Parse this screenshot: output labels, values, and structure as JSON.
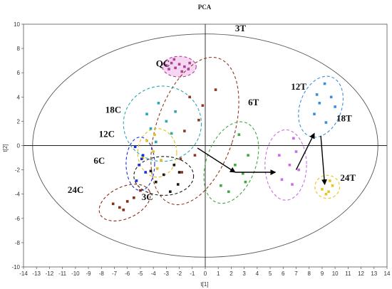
{
  "chart_data": {
    "type": "scatter",
    "title": "PCA",
    "xlabel": "t[1]",
    "ylabel": "t[2]",
    "xlim": [
      -14,
      14
    ],
    "ylim": [
      -10,
      10
    ],
    "xticks": [
      -14,
      -13,
      -12,
      -11,
      -10,
      -9,
      -8,
      -7,
      -6,
      -5,
      -4,
      -3,
      -2,
      -1,
      0,
      1,
      2,
      3,
      4,
      5,
      6,
      7,
      8,
      9,
      10,
      11,
      12,
      13,
      14
    ],
    "yticks": [
      -10,
      -8,
      -6,
      -4,
      -2,
      0,
      2,
      4,
      6,
      8,
      10
    ],
    "grid": false,
    "legend": "none",
    "reference_ellipse": {
      "center": [
        0,
        0
      ],
      "radii": [
        13.3,
        9.2
      ]
    },
    "series": [
      {
        "name": "QC",
        "color": "#b0409a",
        "label_pos": [
          -3.8,
          6.5
        ],
        "ellipse": {
          "cx": -2.0,
          "cy": 6.5,
          "rx": 1.3,
          "ry": 0.85,
          "angle": 0
        },
        "points": [
          [
            -3.0,
            6.6
          ],
          [
            -2.6,
            6.8
          ],
          [
            -2.3,
            6.4
          ],
          [
            -2.0,
            6.7
          ],
          [
            -1.6,
            6.5
          ],
          [
            -1.3,
            6.3
          ],
          [
            -2.4,
            7.1
          ],
          [
            -1.2,
            6.8
          ],
          [
            -2.8,
            6.3
          ],
          [
            -1.8,
            6.1
          ]
        ]
      },
      {
        "name": "3T",
        "color": "#8b3a1e",
        "label_pos": [
          2.3,
          9.4
        ],
        "ellipse": {
          "cx": -0.8,
          "cy": 1.2,
          "rx": 3.0,
          "ry": 6.3,
          "angle": 18
        },
        "points": [
          [
            0.8,
            4.6
          ],
          [
            -0.2,
            3.3
          ],
          [
            -1.2,
            4.0
          ],
          [
            -1.6,
            1.2
          ],
          [
            -0.8,
            -0.8
          ],
          [
            -1.8,
            -2.2
          ],
          [
            -0.5,
            2.1
          ],
          [
            -1.9,
            -1.1
          ]
        ]
      },
      {
        "name": "6T",
        "color": "#40a840",
        "label_pos": [
          3.3,
          3.3
        ],
        "ellipse": {
          "cx": 2.0,
          "cy": -1.4,
          "rx": 1.9,
          "ry": 3.5,
          "angle": 20
        },
        "points": [
          [
            2.6,
            0.9
          ],
          [
            3.3,
            -0.8
          ],
          [
            2.9,
            -2.3
          ],
          [
            1.2,
            -3.3
          ],
          [
            1.8,
            -3.8
          ],
          [
            2.3,
            -1.6
          ],
          [
            3.1,
            -3.0
          ]
        ]
      },
      {
        "name": "12T",
        "color": "#c86ee6",
        "label_pos": [
          6.6,
          4.6
        ],
        "ellipse": {
          "cx": 6.2,
          "cy": -1.6,
          "rx": 1.6,
          "ry": 2.9,
          "angle": 0
        },
        "points": [
          [
            6.8,
            0.6
          ],
          [
            5.7,
            -0.8
          ],
          [
            6.5,
            -1.6
          ],
          [
            7.2,
            -2.0
          ],
          [
            5.9,
            -2.8
          ],
          [
            6.7,
            -3.2
          ],
          [
            7.0,
            -0.5
          ]
        ]
      },
      {
        "name": "18T",
        "color": "#3a8ee0",
        "label_pos": [
          10.1,
          2.0
        ],
        "ellipse": {
          "cx": 8.9,
          "cy": 3.2,
          "rx": 1.6,
          "ry": 2.6,
          "angle": 20
        },
        "points": [
          [
            9.2,
            5.1
          ],
          [
            8.6,
            4.2
          ],
          [
            9.7,
            4.0
          ],
          [
            8.4,
            2.6
          ],
          [
            9.3,
            1.9
          ],
          [
            10.0,
            3.2
          ],
          [
            8.8,
            3.5
          ]
        ]
      },
      {
        "name": "24T",
        "color": "#e8c51a",
        "label_pos": [
          10.4,
          -2.9
        ],
        "ellipse": {
          "cx": 9.4,
          "cy": -3.4,
          "rx": 0.95,
          "ry": 0.95,
          "angle": 0
        },
        "points": [
          [
            9.2,
            -3.0
          ],
          [
            9.6,
            -2.9
          ],
          [
            9.0,
            -3.6
          ],
          [
            9.5,
            -3.8
          ],
          [
            9.8,
            -3.3
          ],
          [
            9.3,
            -4.0
          ]
        ]
      },
      {
        "name": "18C",
        "color": "#2aa8b2",
        "label_pos": [
          -7.7,
          2.7
        ],
        "ellipse": {
          "cx": -3.3,
          "cy": 1.8,
          "rx": 3.0,
          "ry": 3.1,
          "angle": 0
        },
        "points": [
          [
            -3.6,
            3.5
          ],
          [
            -3.0,
            2.0
          ],
          [
            -4.2,
            1.4
          ],
          [
            -2.6,
            1.0
          ],
          [
            -3.8,
            0.3
          ],
          [
            -2.3,
            2.8
          ],
          [
            -4.5,
            2.6
          ]
        ]
      },
      {
        "name": "12C",
        "color": "#e0c020",
        "label_pos": [
          -8.2,
          0.7
        ],
        "ellipse": {
          "cx": -3.7,
          "cy": -0.6,
          "rx": 1.5,
          "ry": 2.0,
          "angle": 0
        },
        "points": [
          [
            -4.5,
            0.4
          ],
          [
            -4.0,
            -0.5
          ],
          [
            -3.4,
            -1.2
          ],
          [
            -4.8,
            -1.0
          ],
          [
            -3.7,
            -1.9
          ],
          [
            -3.9,
            0.9
          ]
        ]
      },
      {
        "name": "6C",
        "color": "#1a30d8",
        "label_pos": [
          -8.6,
          -1.5
        ],
        "ellipse": {
          "cx": -5.0,
          "cy": -1.5,
          "rx": 1.1,
          "ry": 2.2,
          "angle": 0
        },
        "points": [
          [
            -5.4,
            -0.1
          ],
          [
            -4.8,
            -0.8
          ],
          [
            -5.1,
            -1.6
          ],
          [
            -4.6,
            -2.2
          ],
          [
            -5.3,
            -2.9
          ],
          [
            -4.9,
            -1.1
          ]
        ]
      },
      {
        "name": "3C",
        "color": "#1a1a1a",
        "label_pos": [
          -4.9,
          -4.5
        ],
        "ellipse": {
          "cx": -3.2,
          "cy": -2.5,
          "rx": 2.3,
          "ry": 1.6,
          "angle": 0
        },
        "points": [
          [
            -2.4,
            -1.6
          ],
          [
            -3.2,
            -2.4
          ],
          [
            -2.1,
            -3.2
          ],
          [
            -2.7,
            -3.8
          ],
          [
            -3.8,
            -3.0
          ],
          [
            -4.2,
            -2.1
          ],
          [
            -2.0,
            -2.2
          ]
        ]
      },
      {
        "name": "24C",
        "color": "#8b2c14",
        "label_pos": [
          -10.6,
          -3.9
        ],
        "ellipse": {
          "cx": -6.2,
          "cy": -4.7,
          "rx": 2.1,
          "ry": 1.3,
          "angle": -25
        },
        "points": [
          [
            -7.1,
            -4.8
          ],
          [
            -6.6,
            -5.1
          ],
          [
            -6.0,
            -4.6
          ],
          [
            -5.5,
            -4.3
          ],
          [
            -5.0,
            -3.7
          ],
          [
            -6.3,
            -5.3
          ]
        ]
      }
    ],
    "arrows": [
      {
        "from": [
          -0.6,
          -0.2
        ],
        "to": [
          2.3,
          -2.2
        ]
      },
      {
        "from": [
          2.3,
          -2.2
        ],
        "to": [
          5.4,
          -2.2
        ]
      },
      {
        "from": [
          7.0,
          -2.0
        ],
        "to": [
          8.4,
          1.0
        ]
      },
      {
        "from": [
          8.9,
          0.8
        ],
        "to": [
          9.2,
          -3.2
        ]
      }
    ]
  }
}
